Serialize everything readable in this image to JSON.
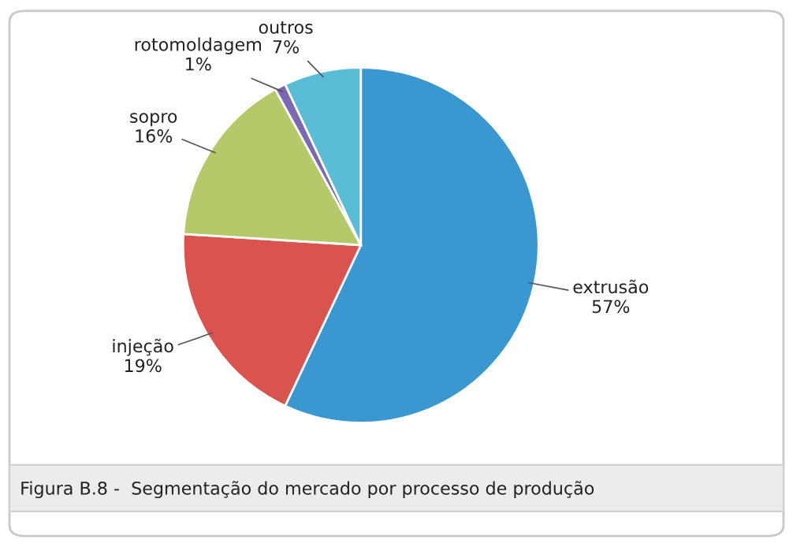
{
  "chart_data": {
    "type": "pie",
    "categories": [
      "extrusão",
      "injeção",
      "sopro",
      "rotomoldagem",
      "outros"
    ],
    "values": [
      57,
      19,
      16,
      1,
      7
    ],
    "value_labels": [
      "57%",
      "19%",
      "16%",
      "1%",
      "7%"
    ],
    "colors": [
      "#3a97d0",
      "#d9534f",
      "#b5c96a",
      "#7b68b0",
      "#5bbcd6"
    ],
    "annotations": [
      "Figura B.8 -  Segmentação do mercado por processo de produção"
    ]
  }
}
